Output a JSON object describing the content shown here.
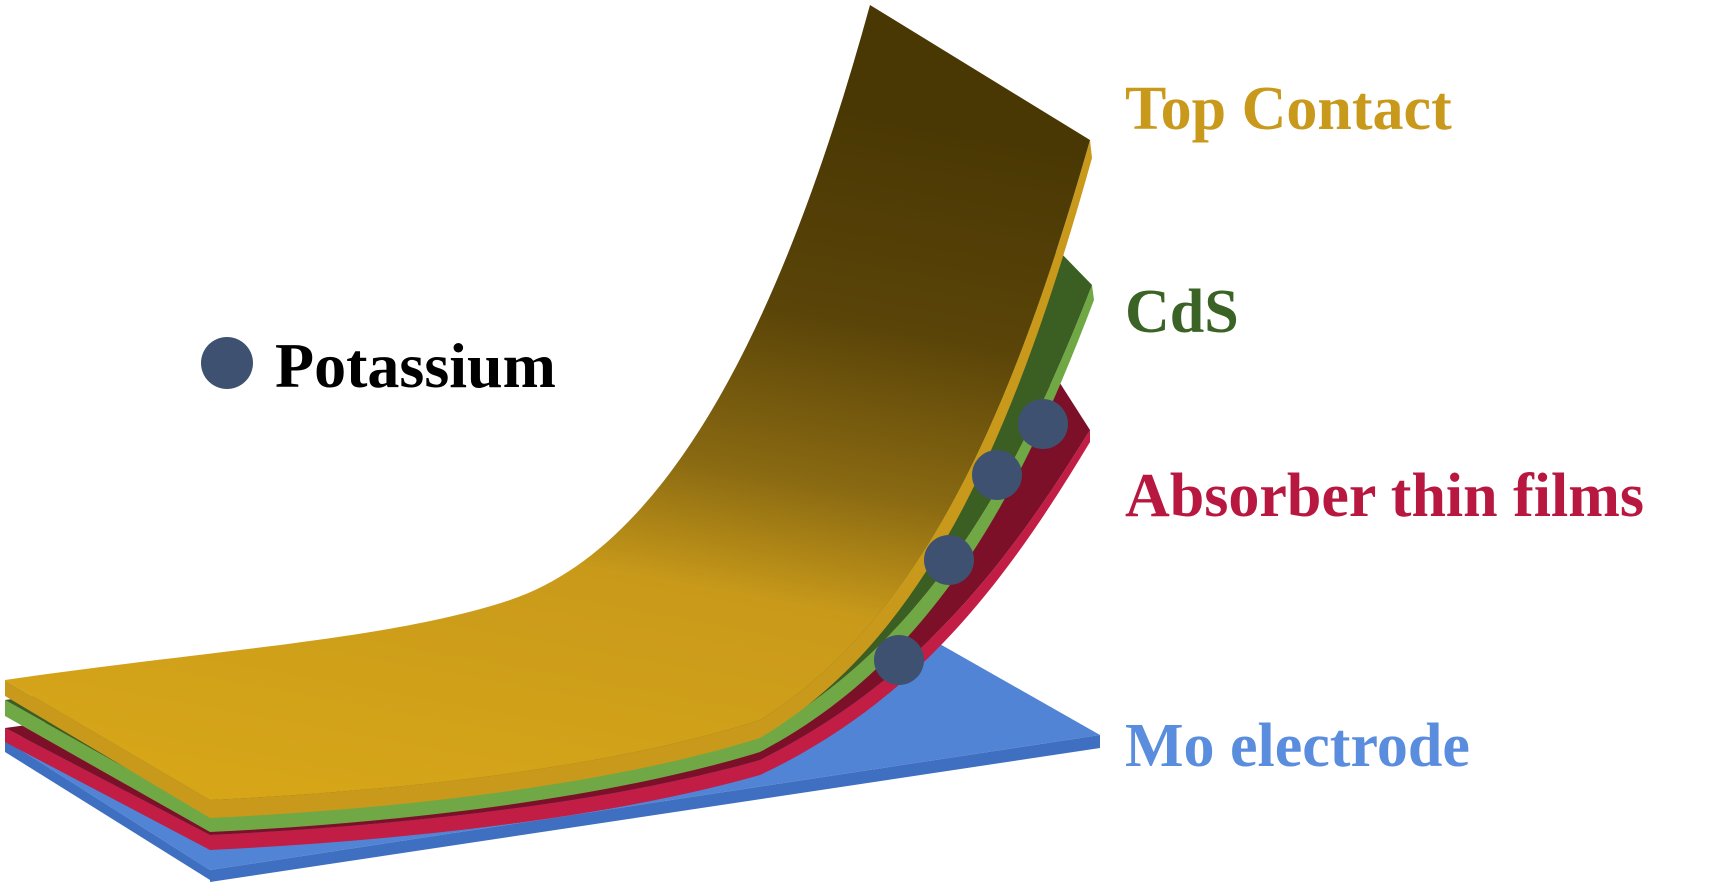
{
  "labels": {
    "top_contact": "Top Contact",
    "cds": "CdS",
    "absorber": "Absorber thin films",
    "mo": "Mo electrode",
    "potassium": "Potassium"
  },
  "colors": {
    "top_contact": "#c9991c",
    "top_contact_dark": "#4d3a05",
    "cds": "#6fa845",
    "cds_dark": "#3b5e23",
    "absorber": "#c21d45",
    "absorber_dark": "#7c1029",
    "mo": "#5284d6",
    "mo_dark": "#3f6fc0",
    "potassium": "#3e5170",
    "label_top": "#c9991c",
    "label_cds": "#3b6325",
    "label_absorber": "#b8183f",
    "label_mo": "#5a8ddd"
  },
  "icons": {
    "potassium_atom": "potassium-dot-icon"
  }
}
